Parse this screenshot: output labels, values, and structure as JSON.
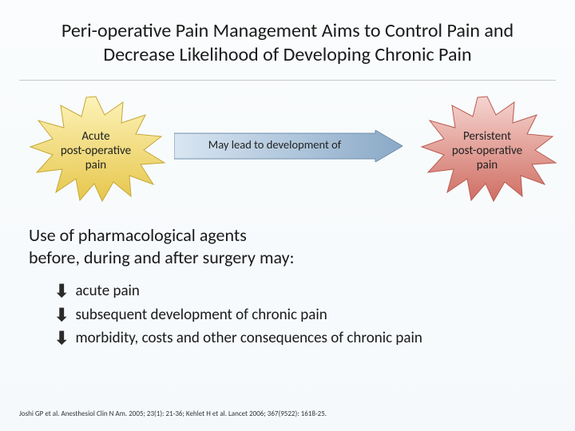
{
  "title": "Peri-operative Pain Management Aims to Control Pain and Decrease Likelihood of Developing Chronic Pain",
  "diagram": {
    "left_burst": {
      "label": "Acute\npost-operative\npain",
      "fill_top": "#fdf3b8",
      "fill_bottom": "#e6c64c",
      "stroke": "#c4a836"
    },
    "arrow": {
      "label": "May lead to development of",
      "fill_left": "#d9e6f2",
      "fill_right": "#8aa9c7",
      "stroke": "#6f8fad"
    },
    "right_burst": {
      "label": "Persistent\npost-operative\npain",
      "fill_top": "#f6d5d0",
      "fill_bottom": "#cf6e63",
      "stroke": "#b95c53"
    }
  },
  "body_text": "Use of pharmacological agents before, during and after surgery may:",
  "bullets": [
    "acute pain",
    "subsequent development of chronic pain",
    "morbidity, costs and other consequences of chronic pain"
  ],
  "bullet_symbol": "⬇",
  "citation": "Joshi GP et al. Anesthesiol Clin N Am. 2005; 23(1): 21-36; Kehlet H et al. Lancet 2006; 367(9522): 1618-25.",
  "colors": {
    "background_top": "#fafcfd",
    "background_bottom": "#f5f9fb",
    "hr": "#c8c8c8",
    "text": "#1a1a1a"
  },
  "fonts": {
    "title_size": 24,
    "body_size": 22,
    "bullet_size": 19,
    "diagram_label_size": 15,
    "citation_size": 9
  }
}
